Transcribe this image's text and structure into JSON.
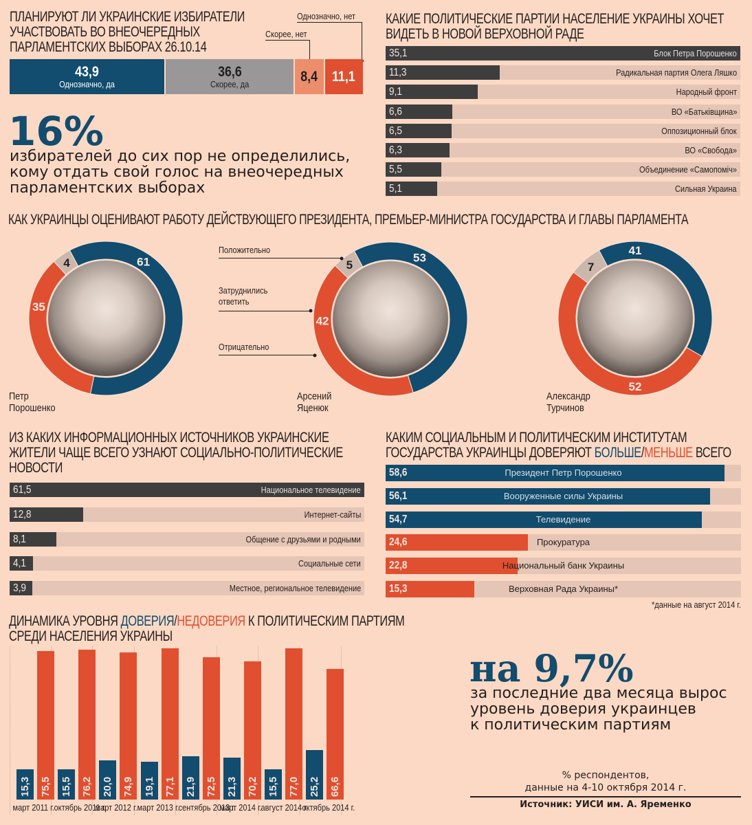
{
  "colors": {
    "background": "#fcd9c4",
    "blue": "#124c6e",
    "gray": "#9a9799",
    "light_orange": "#ec8e6c",
    "red": "#e04f30",
    "dark": "#3e3e3e",
    "track": "#e5c5b5",
    "beige": "#cbb7ab"
  },
  "participation": {
    "title": [
      "ПЛАНИРУЮТ ЛИ УКРАИНСКИЕ ИЗБИРАТЕЛИ",
      "УЧАСТВОВАТЬ ВО ВНЕОЧЕРЕДНЫХ",
      "ПАРЛАМЕНТСКИХ ВЫБОРАХ 26.10.14"
    ],
    "segments": [
      {
        "value": "43,9",
        "label": "Однозначно, да"
      },
      {
        "value": "36,6",
        "label": "Скорее, да"
      },
      {
        "value": "8,4",
        "label": "Скорее, нет"
      },
      {
        "value": "11,1",
        "label": "Однозначно, нет"
      }
    ]
  },
  "undecided": {
    "big": "16%",
    "text": [
      "избирателей до сих пор не определились,",
      "кому отдать свой голос на внеочередных",
      "парламентских выборах"
    ]
  },
  "parties": {
    "title": [
      "КАКИЕ ПОЛИТИЧЕСКИЕ ПАРТИИ НАСЕЛЕНИЕ УКРАИНЫ ХОЧЕТ",
      "ВИДЕТЬ В НОВОЙ ВЕРХОВНОЙ РАДЕ"
    ],
    "items": [
      {
        "value": "35,1",
        "label": "Блок Петра Порошенко"
      },
      {
        "value": "11,3",
        "label": "Радикальная партия Олега Ляшко"
      },
      {
        "value": "9,1",
        "label": "Народный фронт"
      },
      {
        "value": "6,6",
        "label": "ВО «Батьківщина»"
      },
      {
        "value": "6,5",
        "label": "Оппозиционный блок"
      },
      {
        "value": "6,3",
        "label": "ВО «Свобода»"
      },
      {
        "value": "5,5",
        "label": "Объединение «Самопоміч»"
      },
      {
        "value": "5,1",
        "label": "Сильная Украина"
      }
    ]
  },
  "approval": {
    "title": "КАК УКРАИНЦЫ ОЦЕНИВАЮТ РАБОТУ ДЕЙСТВУЮЩЕГО ПРЕЗИДЕНТА, ПРЕМЬЕР-МИНИСТРА ГОСУДАРСТВА И ГЛАВЫ ПАРЛАМЕНТА",
    "legend": {
      "positive": "Положительно",
      "undecided": [
        "Затруднились",
        "ответить"
      ],
      "negative": "Отрицательно"
    },
    "people": [
      {
        "first": "Петр",
        "last": "Порошенко",
        "positive": "61",
        "undecided": "4",
        "negative": "35"
      },
      {
        "first": "Арсений",
        "last": "Яценюк",
        "positive": "53",
        "undecided": "5",
        "negative": "42"
      },
      {
        "first": "Александр",
        "last": "Турчинов",
        "positive": "41",
        "undecided": "7",
        "negative": "52"
      }
    ]
  },
  "sources": {
    "title": [
      "ИЗ КАКИХ ИНФОРМАЦИОННЫХ ИСТОЧНИКОВ УКРАИНСКИЕ",
      "ЖИТЕЛИ ЧАЩЕ ВСЕГО УЗНАЮТ СОЦИАЛЬНО-ПОЛИТИЧЕСКИЕ",
      "НОВОСТИ"
    ],
    "items": [
      {
        "value": "61,5",
        "label": "Национальное телевидение"
      },
      {
        "value": "12,8",
        "label": "Интернет-сайты"
      },
      {
        "value": "8,1",
        "label": "Общение с друзьями и родными"
      },
      {
        "value": "4,1",
        "label": "Социальные сети"
      },
      {
        "value": "3,9",
        "label": "Местное, региональное телевидение"
      }
    ]
  },
  "institutions": {
    "title_line1": "КАКИМ СОЦИАЛЬНЫМ И ПОЛИТИЧЕСКИМ ИНСТИТУТАМ",
    "title_line2_pre": "ГОСУДАРСТВА УКРАИНЦЫ ДОВЕРЯЮТ ",
    "title_more": "БОЛЬШЕ",
    "title_slash": "/",
    "title_less": "МЕНЬШЕ",
    "title_post": " ВСЕГО",
    "items": [
      {
        "value": "58,6",
        "label": "Президент Петр Порошенко",
        "type": "more"
      },
      {
        "value": "56,1",
        "label": "Вооруженные силы Украины",
        "type": "more"
      },
      {
        "value": "54,7",
        "label": "Телевидение",
        "type": "more"
      },
      {
        "value": "24,6",
        "label": "Прокуратура",
        "type": "less"
      },
      {
        "value": "22,8",
        "label": "Национальный банк Украины",
        "type": "less"
      },
      {
        "value": "15,3",
        "label": "Верховная Рада Украины*",
        "type": "less"
      }
    ],
    "footnote": "*данные на август 2014 г."
  },
  "dynamics": {
    "title_pre": "ДИНАМИКА УРОВНЯ ",
    "title_trust": "ДОВЕРИЯ",
    "title_slash": "/",
    "title_distrust": "НЕДОВЕРИЯ",
    "title_post": " К ПОЛИТИЧЕСКИМ ПАРТИЯМ",
    "title_line2": "СРЕДИ НАСЕЛЕНИЯ УКРАИНЫ"
  },
  "highlight": {
    "big": "на 9,7%",
    "text": [
      "за последние два месяца вырос",
      "уровень доверия украинцев",
      "к политическим партиям"
    ]
  },
  "footer": {
    "note": [
      "% респондентов,",
      "данные на 4-10 октября 2014 г."
    ],
    "source": "Источник: УИСИ им. А. Яременко"
  },
  "chart_data": [
    {
      "type": "bar",
      "title": "ПЛАНИРУЮТ ЛИ УКРАИНСКИЕ ИЗБИРАТЕЛИ УЧАСТВОВАТЬ ВО ВНЕОЧЕРЕДНЫХ ПАРЛАМЕНТСКИХ ВЫБОРАХ 26.10.14",
      "stacked": true,
      "categories": [
        "Однозначно, да",
        "Скорее, да",
        "Скорее, нет",
        "Однозначно, нет"
      ],
      "values": [
        43.9,
        36.6,
        8.4,
        11.1
      ]
    },
    {
      "type": "bar",
      "title": "КАКИЕ ПОЛИТИЧЕСКИЕ ПАРТИИ НАСЕЛЕНИЕ УКРАИНЫ ХОЧЕТ ВИДЕТЬ В НОВОЙ ВЕРХОВНОЙ РАДЕ",
      "orientation": "horizontal",
      "categories": [
        "Блок Петра Порошенко",
        "Радикальная партия Олега Ляшко",
        "Народный фронт",
        "ВО «Батьківщина»",
        "Оппозиционный блок",
        "ВО «Свобода»",
        "Объединение «Самопоміч»",
        "Сильная Украина"
      ],
      "values": [
        35.1,
        11.3,
        9.1,
        6.6,
        6.5,
        6.3,
        5.5,
        5.1
      ],
      "xlim": [
        0,
        35.1
      ]
    },
    {
      "type": "pie",
      "title": "Петр Порошенко",
      "donut": true,
      "categories": [
        "Положительно",
        "Затруднились ответить",
        "Отрицательно"
      ],
      "values": [
        61,
        4,
        35
      ]
    },
    {
      "type": "pie",
      "title": "Арсений Яценюк",
      "donut": true,
      "categories": [
        "Положительно",
        "Затруднились ответить",
        "Отрицательно"
      ],
      "values": [
        53,
        5,
        42
      ]
    },
    {
      "type": "pie",
      "title": "Александр Турчинов",
      "donut": true,
      "categories": [
        "Положительно",
        "Затруднились ответить",
        "Отрицательно"
      ],
      "values": [
        41,
        7,
        52
      ]
    },
    {
      "type": "bar",
      "title": "ИЗ КАКИХ ИНФОРМАЦИОННЫХ ИСТОЧНИКОВ УКРАИНСКИЕ ЖИТЕЛИ ЧАЩЕ ВСЕГО УЗНАЮТ СОЦИАЛЬНО-ПОЛИТИЧЕСКИЕ НОВОСТИ",
      "orientation": "horizontal",
      "categories": [
        "Национальное телевидение",
        "Интернет-сайты",
        "Общение с друзьями и родными",
        "Социальные сети",
        "Местное, региональное телевидение"
      ],
      "values": [
        61.5,
        12.8,
        8.1,
        4.1,
        3.9
      ],
      "xlim": [
        0,
        61.5
      ]
    },
    {
      "type": "bar",
      "title": "КАКИМ СОЦИАЛЬНЫМ И ПОЛИТИЧЕСКИМ ИНСТИТУТАМ ГОСУДАРСТВА УКРАИНЦЫ ДОВЕРЯЮТ БОЛЬШЕ/МЕНЬШЕ ВСЕГО",
      "orientation": "horizontal",
      "categories": [
        "Президент Петр Порошенко",
        "Вооруженные силы Украины",
        "Телевидение",
        "Прокуратура",
        "Национальный банк Украины",
        "Верховная Рада Украины*"
      ],
      "values": [
        58.6,
        56.1,
        54.7,
        24.6,
        22.8,
        15.3
      ],
      "xlim": [
        0,
        61.5
      ]
    },
    {
      "type": "bar",
      "title": "ДИНАМИКА УРОВНЯ ДОВЕРИЯ/НЕДОВЕРИЯ К ПОЛИТИЧЕСКИМ ПАРТИЯМ СРЕДИ НАСЕЛЕНИЯ УКРАИНЫ",
      "categories": [
        "март 2011 г.",
        "октябрь 2011 г.",
        "март 2012 г.",
        "март 2013 г.",
        "сентябрь 2013 г.",
        "март 2014 г.",
        "август 2014 г.",
        "октябрь 2014 г."
      ],
      "series": [
        {
          "name": "доверие",
          "values": [
            15.3,
            15.5,
            20.0,
            19.1,
            21.9,
            21.3,
            15.5,
            25.2
          ],
          "labels": [
            "15,3",
            "15,5",
            "20,0",
            "19,1",
            "21,9",
            "21,3",
            "15,5",
            "25,2"
          ]
        },
        {
          "name": "недоверие",
          "values": [
            75.5,
            76.2,
            74.9,
            77.1,
            72.5,
            70.2,
            77.0,
            66.6
          ],
          "labels": [
            "75,5",
            "76,2",
            "74,9",
            "77,1",
            "72,5",
            "70,2",
            "77,0",
            "66,6"
          ]
        }
      ],
      "ylim": [
        0,
        80
      ]
    }
  ]
}
